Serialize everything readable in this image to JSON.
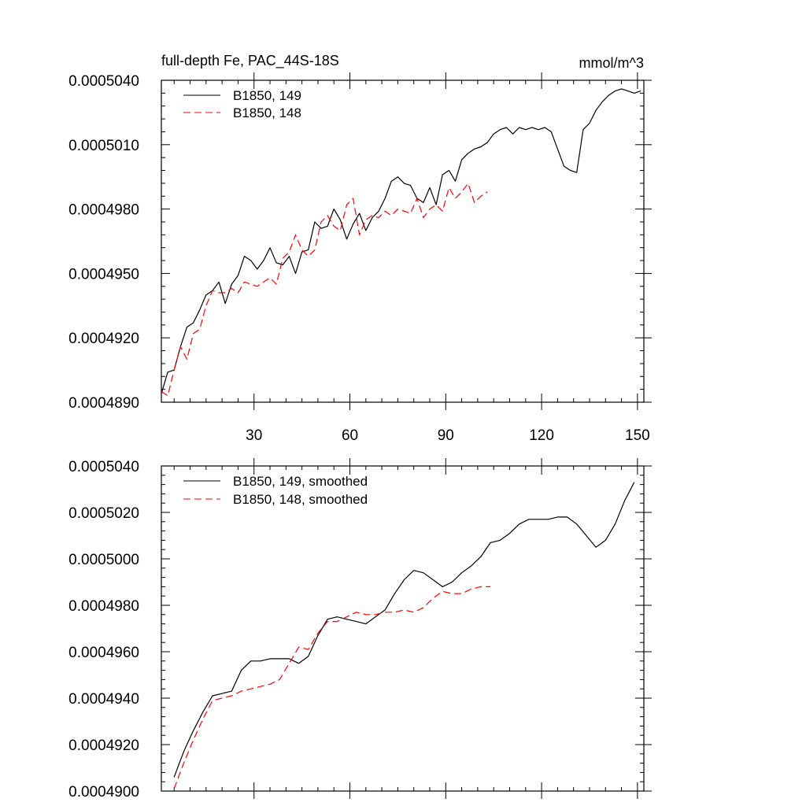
{
  "chart_data": [
    {
      "type": "line",
      "title": "full-depth Fe, PAC_44S-18S",
      "units": "mmol/m^3",
      "xlim": [
        1,
        152
      ],
      "ylim": [
        0.000489,
        0.000504
      ],
      "xticks": [
        30,
        60,
        90,
        120,
        150
      ],
      "xtick_labels": [
        "30",
        "60",
        "90",
        "120",
        "150"
      ],
      "yticks": [
        0.000489,
        0.000492,
        0.000495,
        0.000498,
        0.000501,
        0.000504
      ],
      "ytick_labels": [
        "0.0004890",
        "0.0004920",
        "0.0004950",
        "0.0004980",
        "0.0005010",
        "0.0005040"
      ],
      "legend_position": "top-left",
      "series": [
        {
          "name": "B1850, 149",
          "color": "#000000",
          "dash": "solid",
          "x": [
            1,
            3,
            5,
            7,
            9,
            11,
            13,
            15,
            17,
            19,
            21,
            23,
            25,
            27,
            29,
            31,
            33,
            35,
            37,
            39,
            41,
            43,
            45,
            47,
            49,
            51,
            53,
            55,
            57,
            59,
            61,
            63,
            65,
            67,
            69,
            71,
            73,
            75,
            77,
            79,
            81,
            83,
            85,
            87,
            89,
            91,
            93,
            95,
            97,
            99,
            101,
            103,
            105,
            107,
            109,
            111,
            113,
            115,
            117,
            119,
            121,
            123,
            125,
            127,
            129,
            131,
            133,
            135,
            137,
            139,
            141,
            143,
            145,
            147,
            149,
            151
          ],
          "y": [
            0.0004894,
            0.0004904,
            0.0004905,
            0.0004916,
            0.0004925,
            0.0004927,
            0.0004933,
            0.000494,
            0.0004942,
            0.0004946,
            0.0004936,
            0.0004945,
            0.0004949,
            0.0004958,
            0.0004956,
            0.0004952,
            0.0004956,
            0.0004962,
            0.0004955,
            0.0004954,
            0.0004958,
            0.000495,
            0.000496,
            0.0004961,
            0.0004974,
            0.0004971,
            0.0004972,
            0.000498,
            0.0004975,
            0.0004966,
            0.0004973,
            0.0004978,
            0.000497,
            0.0004976,
            0.0004979,
            0.0004985,
            0.0004993,
            0.0004995,
            0.0004992,
            0.0004991,
            0.0004985,
            0.0004983,
            0.000499,
            0.0004982,
            0.0004996,
            0.0004998,
            0.0004993,
            0.0005003,
            0.0005006,
            0.0005008,
            0.0005009,
            0.0005011,
            0.0005015,
            0.0005017,
            0.0005018,
            0.0005015,
            0.0005018,
            0.0005017,
            0.0005018,
            0.0005017,
            0.0005018,
            0.0005016,
            0.0005008,
            0.0005,
            0.0004998,
            0.0004997,
            0.0005017,
            0.000502,
            0.0005026,
            0.000503,
            0.0005033,
            0.0005035,
            0.0005036,
            0.0005035,
            0.0005034,
            0.0005035
          ]
        },
        {
          "name": "B1850, 148",
          "color": "#ff0000",
          "dash": "dashed",
          "x": [
            1,
            3,
            5,
            7,
            9,
            11,
            13,
            15,
            17,
            19,
            21,
            23,
            25,
            27,
            29,
            31,
            33,
            35,
            37,
            39,
            41,
            43,
            45,
            47,
            49,
            51,
            53,
            55,
            57,
            59,
            61,
            63,
            65,
            67,
            69,
            71,
            73,
            75,
            77,
            79,
            81,
            83,
            85,
            87,
            89,
            91,
            93,
            95,
            97,
            99,
            101,
            103
          ],
          "y": [
            0.0004895,
            0.0004893,
            0.0004905,
            0.0004916,
            0.000491,
            0.0004922,
            0.0004924,
            0.0004935,
            0.0004942,
            0.0004941,
            0.0004941,
            0.0004943,
            0.0004941,
            0.0004946,
            0.0004945,
            0.0004944,
            0.0004946,
            0.0004948,
            0.0004945,
            0.0004957,
            0.000496,
            0.0004968,
            0.0004961,
            0.0004958,
            0.0004961,
            0.0004974,
            0.0004977,
            0.0004972,
            0.000497,
            0.0004982,
            0.0004985,
            0.0004968,
            0.0004975,
            0.0004977,
            0.0004976,
            0.0004979,
            0.0004977,
            0.000498,
            0.0004979,
            0.0004978,
            0.0004985,
            0.0004976,
            0.000498,
            0.0004982,
            0.0004979,
            0.000499,
            0.0004985,
            0.0004988,
            0.0004992,
            0.0004983,
            0.0004986,
            0.0004988
          ]
        }
      ]
    },
    {
      "type": "line",
      "xlim": [
        1,
        152
      ],
      "ylim": [
        0.00049,
        0.000504
      ],
      "xticks": [
        30,
        60,
        90,
        120,
        150
      ],
      "yticks": [
        0.00049,
        0.000492,
        0.000494,
        0.000496,
        0.000498,
        0.0005,
        0.000502,
        0.000504
      ],
      "ytick_labels": [
        "0.0004900",
        "0.0004920",
        "0.0004940",
        "0.0004960",
        "0.0004980",
        "0.0005000",
        "0.0005020",
        "0.0005040"
      ],
      "legend_position": "top-left",
      "series": [
        {
          "name": "B1850, 149, smoothed",
          "color": "#000000",
          "dash": "solid",
          "x": [
            5,
            8,
            11,
            14,
            17,
            20,
            23,
            26,
            29,
            32,
            35,
            38,
            41,
            44,
            47,
            50,
            53,
            56,
            59,
            62,
            65,
            68,
            71,
            74,
            77,
            80,
            83,
            86,
            89,
            92,
            95,
            98,
            101,
            104,
            107,
            110,
            113,
            116,
            119,
            122,
            125,
            128,
            131,
            134,
            137,
            140,
            143,
            146,
            149
          ],
          "y": [
            0.0004906,
            0.0004917,
            0.0004926,
            0.0004934,
            0.0004941,
            0.0004942,
            0.0004943,
            0.0004952,
            0.0004956,
            0.0004956,
            0.0004957,
            0.0004957,
            0.0004957,
            0.0004955,
            0.0004958,
            0.0004967,
            0.0004974,
            0.0004975,
            0.0004974,
            0.0004973,
            0.0004972,
            0.0004975,
            0.0004978,
            0.0004985,
            0.0004991,
            0.0004995,
            0.0004994,
            0.0004991,
            0.0004988,
            0.000499,
            0.0004994,
            0.0004997,
            0.0005001,
            0.0005007,
            0.0005008,
            0.0005011,
            0.0005015,
            0.0005017,
            0.0005017,
            0.0005017,
            0.0005018,
            0.0005018,
            0.0005015,
            0.000501,
            0.0005005,
            0.0005008,
            0.0005015,
            0.0005025,
            0.0005033
          ]
        },
        {
          "name": "B1850, 148, smoothed",
          "color": "#ff0000",
          "dash": "dashed",
          "x": [
            5,
            8,
            11,
            14,
            17,
            20,
            23,
            26,
            29,
            32,
            35,
            38,
            41,
            44,
            47,
            50,
            53,
            56,
            59,
            62,
            65,
            68,
            71,
            74,
            77,
            80,
            83,
            86,
            89,
            92,
            95,
            98,
            101,
            104
          ],
          "y": [
            0.0004901,
            0.0004912,
            0.0004922,
            0.0004931,
            0.0004939,
            0.000494,
            0.0004941,
            0.0004943,
            0.0004944,
            0.0004945,
            0.0004946,
            0.0004948,
            0.0004955,
            0.0004962,
            0.0004961,
            0.0004968,
            0.0004973,
            0.0004973,
            0.0004975,
            0.0004977,
            0.0004976,
            0.0004976,
            0.0004977,
            0.0004977,
            0.0004978,
            0.0004977,
            0.0004979,
            0.0004983,
            0.0004986,
            0.0004985,
            0.0004985,
            0.0004987,
            0.0004988,
            0.0004988
          ]
        }
      ]
    }
  ]
}
